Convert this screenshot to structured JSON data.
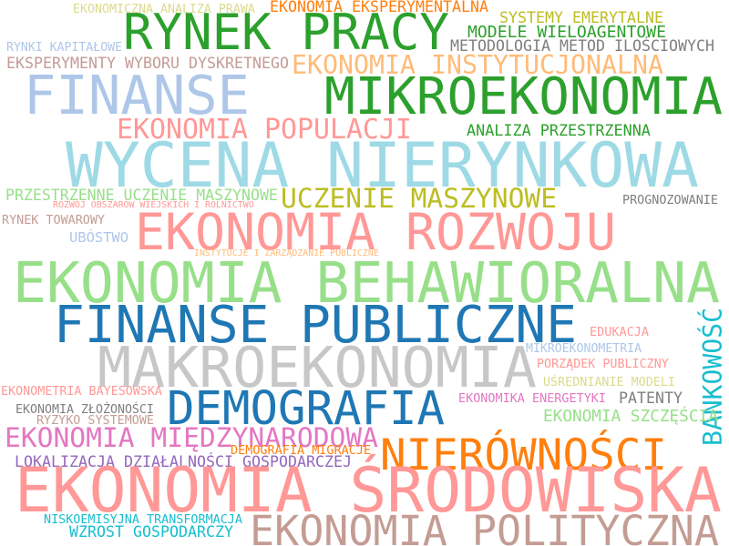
{
  "words": [
    {
      "text": "EKONOMICZNA ANALIZA PRAWA",
      "color": "#dbdb8d"
    },
    {
      "text": "EKONOMIA EKSPERYMENTALNA",
      "color": "#ff7f0e"
    },
    {
      "text": "RYNEK PRACY",
      "color": "#2ca02c"
    },
    {
      "text": "SYSTEMY EMERYTALNE",
      "color": "#bcbd22"
    },
    {
      "text": "RYNKI KAPITAŁOWE",
      "color": "#aec7e8"
    },
    {
      "text": "MODELE WIELOAGENTOWE",
      "color": "#2ca02c"
    },
    {
      "text": "METODOLOGIA METOD ILOŚCIOWYCH",
      "color": "#7f7f7f"
    },
    {
      "text": "EKSPERYMENTY WYBORU DYSKRETNEGO",
      "color": "#c49c94"
    },
    {
      "text": "EKONOMIA INSTYTUCJONALNA",
      "color": "#ffbb78"
    },
    {
      "text": "FINANSE",
      "color": "#aec7e8"
    },
    {
      "text": "MIKROEKONOMIA",
      "color": "#2ca02c"
    },
    {
      "text": "EKONOMIA POPULACJI",
      "color": "#ff9896"
    },
    {
      "text": "ANALIZA PRZESTRZENNA",
      "color": "#2ca02c"
    },
    {
      "text": "WYCENA NIERYNKOWA",
      "color": "#9edae5"
    },
    {
      "text": "PRZESTRZENNE UCZENIE MASZYNOWE",
      "color": "#98df8a"
    },
    {
      "text": "UCZENIE MASZYNOWE",
      "color": "#bcbd22"
    },
    {
      "text": "ROZWÓJ OBSZARÓW WIEJSKICH I ROLNICTWO",
      "color": "#ff9896"
    },
    {
      "text": "PROGNOZOWANIE",
      "color": "#7f7f7f"
    },
    {
      "text": "RYNEK TOWAROWY",
      "color": "#c49c94"
    },
    {
      "text": "EKONOMIA ROZWOJU",
      "color": "#ff9896"
    },
    {
      "text": "UBÓSTWO",
      "color": "#aec7e8"
    },
    {
      "text": "INSTYTUCJE I ZARZĄDZANIE PUBLICZNE",
      "color": "#ffbb78"
    },
    {
      "text": "EKONOMIA BEHAWIORALNA",
      "color": "#98df8a"
    },
    {
      "text": "FINANSE PUBLICZNE",
      "color": "#1f77b4"
    },
    {
      "text": "BANKOWOŚĆ",
      "color": "#17becf"
    },
    {
      "text": "EDUKACJA",
      "color": "#ff9896"
    },
    {
      "text": "MAKROEKONOMIA",
      "color": "#c7c7c7"
    },
    {
      "text": "MIKROEKONOMETRIA",
      "color": "#aec7e8"
    },
    {
      "text": "PORZĄDEK PUBLICZNY",
      "color": "#ff9896"
    },
    {
      "text": "UŚREDNIANIE MODELI",
      "color": "#dbdb8d"
    },
    {
      "text": "EKONOMETRIA BAYESOWSKA",
      "color": "#ff9896"
    },
    {
      "text": "DEMOGRAFIA",
      "color": "#1f77b4"
    },
    {
      "text": "PATENTY",
      "color": "#7f7f7f"
    },
    {
      "text": "EKONOMIKA ENERGETYKI",
      "color": "#e377c2"
    },
    {
      "text": "EKONOMIA ZŁOŻONOŚCI",
      "color": "#7f7f7f"
    },
    {
      "text": "RYZYKO SYSTEMOWE",
      "color": "#c49c94"
    },
    {
      "text": "EKONOMIA SZCZĘŚCIA",
      "color": "#98df8a"
    },
    {
      "text": "EKONOMIA MIĘDZYNARODOWA",
      "color": "#e377c2"
    },
    {
      "text": "NIERÓWNOŚCI",
      "color": "#ff7f0e"
    },
    {
      "text": "DEMOGRAFIA MIGRACJE",
      "color": "#ff7f0e"
    },
    {
      "text": "LOKALIZACJA DZIAŁALNOŚCI GOSPODARCZEJ",
      "color": "#9467bd"
    },
    {
      "text": "EKONOMIA ŚRODOWISKA",
      "color": "#ff9896"
    },
    {
      "text": "NISKOEMISYJNA TRANSFORMACJA",
      "color": "#17becf"
    },
    {
      "text": "WZROST GOSPODARCZY",
      "color": "#17becf"
    },
    {
      "text": "EKONOMIA POLITYCZNA",
      "color": "#c49c94"
    }
  ]
}
